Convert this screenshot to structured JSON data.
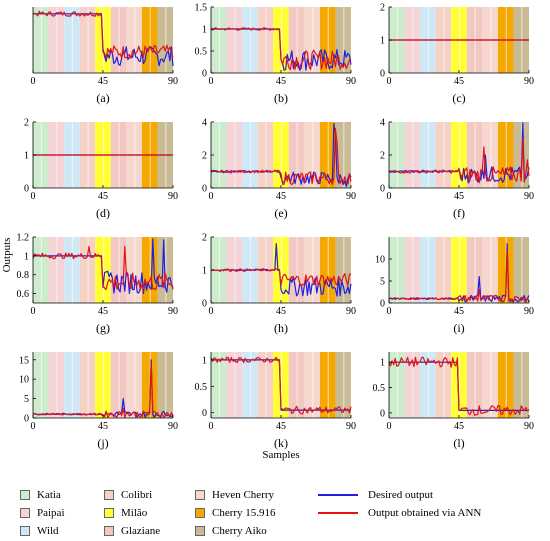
{
  "figure": {
    "ylabel": "Outputs",
    "xlabel": "Samples"
  },
  "colors": {
    "desired": "#1f1fe0",
    "ann": "#e01515",
    "bands": [
      "#cdeccd",
      "#f4d4d6",
      "#cfe8f5",
      "#f6d2c6",
      "#ffff33",
      "#f3c7c2",
      "#f6d7cd",
      "#f5a800",
      "#c8bb96"
    ]
  },
  "legend": {
    "classes": [
      {
        "name": "Katia",
        "color": "#cdeccd"
      },
      {
        "name": "Paipai",
        "color": "#f4d4d6"
      },
      {
        "name": "Wild",
        "color": "#cfe8f5"
      },
      {
        "name": "Colibri",
        "color": "#f6d2c6"
      },
      {
        "name": "Milão",
        "color": "#ffff33"
      },
      {
        "name": "Glaziane",
        "color": "#f3c7c2"
      },
      {
        "name": "Heven Cherry",
        "color": "#f6d7cd"
      },
      {
        "name": "Cherry 15.916",
        "color": "#f5a800"
      },
      {
        "name": "Cherry Aiko",
        "color": "#c8bb96"
      }
    ],
    "series": [
      {
        "name": "Desired output",
        "color": "#1f1fe0"
      },
      {
        "name": "Output obtained via ANN",
        "color": "#e01515"
      }
    ]
  },
  "chart_data": [
    {
      "type": "line",
      "panel_label": "(a)",
      "xlim": [
        0,
        90
      ],
      "ylim": [
        0.3,
        1.08
      ],
      "xticks": [
        0,
        45,
        90
      ],
      "yticks": [],
      "series": [
        {
          "name": "Desired output",
          "shape": "step",
          "low": 0.5,
          "high": 1.0,
          "jitter": [
            0,
            0.12
          ],
          "spikes": []
        },
        {
          "name": "Output obtained via ANN",
          "shape": "step",
          "low": 0.55,
          "high": 1.0,
          "jitter": [
            0.03,
            0.08
          ],
          "spikes": []
        }
      ]
    },
    {
      "type": "line",
      "panel_label": "(b)",
      "xlim": [
        0,
        90
      ],
      "ylim": [
        0,
        1.5
      ],
      "xticks": [
        0,
        45,
        90
      ],
      "yticks": [
        0,
        0.5,
        1,
        1.5
      ],
      "series": [
        {
          "name": "Desired output",
          "shape": "step",
          "low": 0.3,
          "high": 1.0,
          "jitter": [
            0,
            0.25
          ],
          "spikes": []
        },
        {
          "name": "Output obtained via ANN",
          "shape": "step",
          "low": 0.3,
          "high": 1.0,
          "jitter": [
            0.03,
            0.22
          ],
          "spikes": []
        }
      ]
    },
    {
      "type": "line",
      "panel_label": "(c)",
      "xlim": [
        0,
        90
      ],
      "ylim": [
        0,
        2
      ],
      "xticks": [
        0,
        45,
        90
      ],
      "yticks": [
        0,
        1,
        2
      ],
      "series": [
        {
          "name": "Desired output",
          "shape": "flat",
          "low": 1.0,
          "high": 1.0,
          "jitter": [
            0,
            0
          ],
          "spikes": []
        },
        {
          "name": "Output obtained via ANN",
          "shape": "flat",
          "low": 1.0,
          "high": 1.0,
          "jitter": [
            0,
            0
          ],
          "spikes": []
        }
      ]
    },
    {
      "type": "line",
      "panel_label": "(d)",
      "xlim": [
        0,
        90
      ],
      "ylim": [
        0,
        2
      ],
      "xticks": [
        0,
        45,
        90
      ],
      "yticks": [
        0,
        1,
        2
      ],
      "series": [
        {
          "name": "Desired output",
          "shape": "flat",
          "low": 1.0,
          "high": 1.0,
          "jitter": [
            0,
            0
          ],
          "spikes": []
        },
        {
          "name": "Output obtained via ANN",
          "shape": "flat",
          "low": 1.0,
          "high": 1.0,
          "jitter": [
            0,
            0
          ],
          "spikes": []
        }
      ]
    },
    {
      "type": "line",
      "panel_label": "(e)",
      "xlim": [
        0,
        90
      ],
      "ylim": [
        0,
        4
      ],
      "xticks": [
        0,
        45,
        90
      ],
      "yticks": [
        0,
        2,
        4
      ],
      "series": [
        {
          "name": "Desired output",
          "shape": "noisy",
          "low": 0.6,
          "high": 1.0,
          "jitter": [
            0.05,
            0.4
          ],
          "spikes": [
            [
              79,
              3.9
            ],
            [
              80,
              3.2
            ],
            [
              87,
              0.1
            ]
          ]
        },
        {
          "name": "Output obtained via ANN",
          "shape": "noisy",
          "low": 0.6,
          "high": 1.0,
          "jitter": [
            0.08,
            0.4
          ],
          "spikes": [
            [
              80,
              3.6
            ],
            [
              81,
              2.8
            ],
            [
              87,
              0.3
            ]
          ]
        }
      ]
    },
    {
      "type": "line",
      "panel_label": "(f)",
      "xlim": [
        0,
        90
      ],
      "ylim": [
        0,
        4
      ],
      "xticks": [
        0,
        45,
        90
      ],
      "yticks": [
        0,
        2,
        4
      ],
      "series": [
        {
          "name": "Desired output",
          "shape": "noisy",
          "low": 0.8,
          "high": 1.0,
          "jitter": [
            0.05,
            0.5
          ],
          "spikes": [
            [
              62,
              2.0
            ],
            [
              86,
              4.0
            ],
            [
              88,
              0.6
            ]
          ]
        },
        {
          "name": "Output obtained via ANN",
          "shape": "noisy",
          "low": 0.8,
          "high": 1.0,
          "jitter": [
            0.1,
            0.5
          ],
          "spikes": [
            [
              61,
              2.5
            ],
            [
              86,
              3.0
            ],
            [
              89,
              1.7
            ]
          ]
        }
      ]
    },
    {
      "type": "line",
      "panel_label": "(g)",
      "xlim": [
        0,
        90
      ],
      "ylim": [
        0.5,
        1.2
      ],
      "xticks": [
        0,
        45,
        90
      ],
      "yticks": [
        0.6,
        0.8,
        1,
        1.2
      ],
      "series": [
        {
          "name": "Desired output",
          "shape": "step",
          "low": 0.72,
          "high": 1.0,
          "jitter": [
            0,
            0.12
          ],
          "spikes": [
            [
              77,
              1.18
            ],
            [
              84,
              1.17
            ]
          ]
        },
        {
          "name": "Output obtained via ANN",
          "shape": "step",
          "low": 0.72,
          "high": 1.0,
          "jitter": [
            0.03,
            0.1
          ],
          "spikes": [
            [
              36,
              1.1
            ],
            [
              59,
              1.1
            ]
          ]
        }
      ]
    },
    {
      "type": "line",
      "panel_label": "(h)",
      "xlim": [
        0,
        90
      ],
      "ylim": [
        0,
        2
      ],
      "xticks": [
        0,
        45,
        90
      ],
      "yticks": [
        0,
        1,
        2
      ],
      "series": [
        {
          "name": "Desired output",
          "shape": "step",
          "low": 0.5,
          "high": 1.0,
          "jitter": [
            0.02,
            0.3
          ],
          "spikes": [
            [
              42,
              1.8
            ]
          ]
        },
        {
          "name": "Output obtained via ANN",
          "shape": "step",
          "low": 0.7,
          "high": 1.0,
          "jitter": [
            0.04,
            0.2
          ],
          "spikes": []
        }
      ]
    },
    {
      "type": "line",
      "panel_label": "(i)",
      "xlim": [
        0,
        90
      ],
      "ylim": [
        0,
        15
      ],
      "xticks": [
        0,
        45,
        90
      ],
      "yticks": [
        0,
        5,
        10
      ],
      "series": [
        {
          "name": "Desired output",
          "shape": "noisy",
          "low": 1.0,
          "high": 1.0,
          "jitter": [
            0.2,
            0.8
          ],
          "spikes": [
            [
              58,
              6.0
            ],
            [
              76,
              13.5
            ]
          ]
        },
        {
          "name": "Output obtained via ANN",
          "shape": "noisy",
          "low": 1.0,
          "high": 1.0,
          "jitter": [
            0.2,
            0.8
          ],
          "spikes": [
            [
              76,
              12.0
            ],
            [
              58,
              3.0
            ]
          ]
        }
      ]
    },
    {
      "type": "line",
      "panel_label": "(j)",
      "xlim": [
        0,
        90
      ],
      "ylim": [
        0,
        17
      ],
      "xticks": [
        0,
        45,
        90
      ],
      "yticks": [
        0,
        5,
        10,
        15
      ],
      "series": [
        {
          "name": "Desired output",
          "shape": "noisy",
          "low": 1.0,
          "high": 1.0,
          "jitter": [
            0.2,
            0.8
          ],
          "spikes": [
            [
              58,
              5.0
            ],
            [
              76,
              15.0
            ]
          ]
        },
        {
          "name": "Output obtained via ANN",
          "shape": "noisy",
          "low": 1.0,
          "high": 1.0,
          "jitter": [
            0.2,
            0.8
          ],
          "spikes": [
            [
              76,
              14.0
            ],
            [
              58,
              2.5
            ]
          ]
        }
      ]
    },
    {
      "type": "line",
      "panel_label": "(k)",
      "xlim": [
        0,
        90
      ],
      "ylim": [
        -0.1,
        1.15
      ],
      "xticks": [
        0,
        45,
        90
      ],
      "yticks": [
        0,
        0.5,
        1
      ],
      "series": [
        {
          "name": "Desired output",
          "shape": "step",
          "low": 0.05,
          "high": 1.0,
          "jitter": [
            0,
            0
          ],
          "spikes": []
        },
        {
          "name": "Output obtained via ANN",
          "shape": "step",
          "low": 0.05,
          "high": 1.0,
          "jitter": [
            0.05,
            0.07
          ],
          "spikes": []
        }
      ]
    },
    {
      "type": "line",
      "panel_label": "(l)",
      "xlim": [
        0,
        90
      ],
      "ylim": [
        -0.1,
        1.2
      ],
      "xticks": [
        0,
        45,
        90
      ],
      "yticks": [
        0,
        0.5,
        1
      ],
      "series": [
        {
          "name": "Desired output",
          "shape": "step",
          "low": 0.05,
          "high": 1.0,
          "jitter": [
            0,
            0
          ],
          "spikes": []
        },
        {
          "name": "Output obtained via ANN",
          "shape": "step",
          "low": 0.05,
          "high": 1.0,
          "jitter": [
            0.1,
            0.1
          ],
          "spikes": []
        }
      ]
    }
  ]
}
